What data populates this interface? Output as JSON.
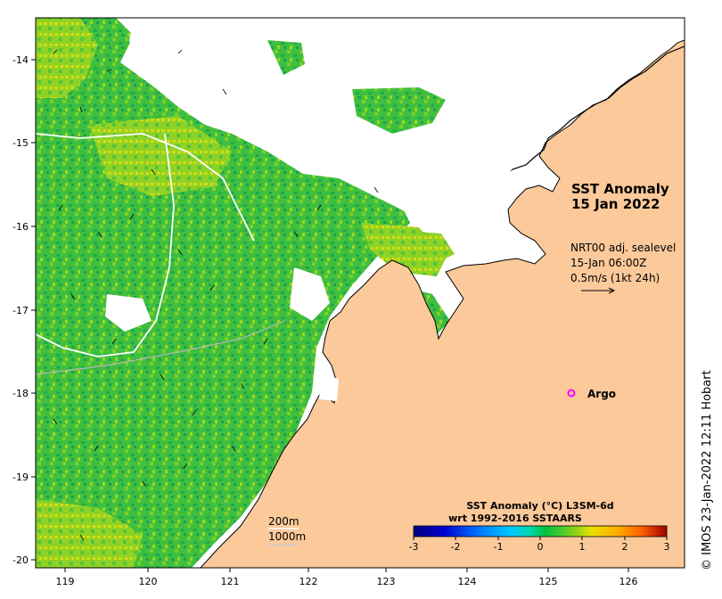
{
  "map": {
    "title_line1": "SST Anomaly",
    "title_line2": "15 Jan 2022",
    "current_source": "NRT00 adj. sealevel",
    "current_time": "15-Jan 06:00Z",
    "arrow_scale": "0.5m/s (1kt 24h)",
    "argo_label": "Argo",
    "isobath_200": "200m",
    "isobath_1000": "1000m",
    "credit": "© IMOS 23-Jan-2022 12:11 Hobart",
    "land_color": "#fbc99a",
    "argo_color": "#ff00ff"
  },
  "axes": {
    "lon_ticks": [
      "119",
      "120",
      "121",
      "122",
      "123",
      "124",
      "125",
      "126"
    ],
    "lat_ticks": [
      "-14",
      "-15",
      "-16",
      "-17",
      "-18",
      "-19",
      "-20"
    ]
  },
  "colorbar": {
    "title_line1": "SST Anomaly (°C) L3SM-6d",
    "title_line2": "wrt 1992-2016 SSTAARS",
    "ticks": [
      "-3",
      "-2",
      "-1",
      "0",
      "1",
      "2",
      "3"
    ],
    "colors": [
      "#00007f",
      "#0000c8",
      "#0050ff",
      "#00a0ff",
      "#00dcdc",
      "#00d08a",
      "#00c040",
      "#50d020",
      "#a0e000",
      "#e0e000",
      "#ffc000",
      "#ff8000",
      "#e04000",
      "#a00000"
    ]
  }
}
